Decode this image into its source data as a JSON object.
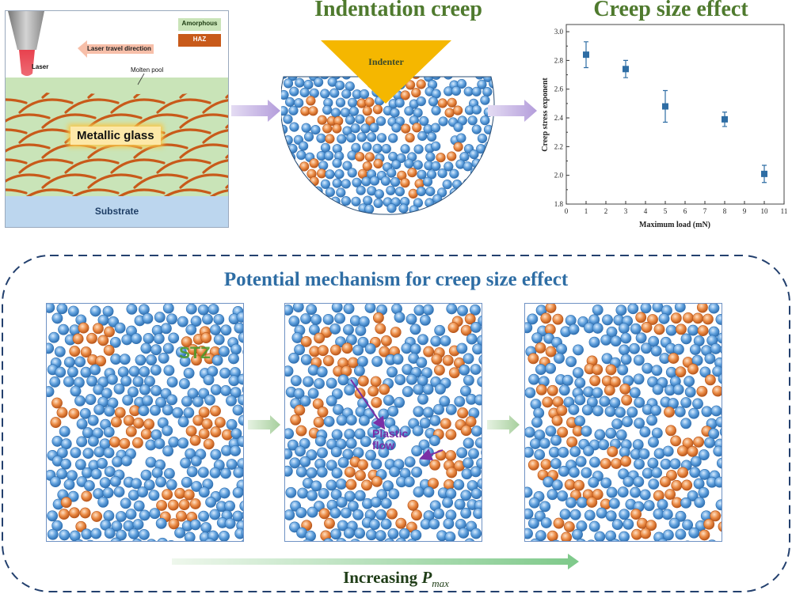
{
  "laser_panel": {
    "laser_label": "Laser",
    "travel_direction_label": "Laser travel direction",
    "molten_pool_label": "Molten pool",
    "legend": [
      {
        "label": "Amorphous",
        "color": "#c9e4b8"
      },
      {
        "label": "HAZ",
        "color": "#c85a1a"
      }
    ],
    "metallic_glass_label": "Metallic glass",
    "substrate_label": "Substrate"
  },
  "indentation_panel": {
    "title": "Indentation creep",
    "indenter_label": "Indenter"
  },
  "chart_data": {
    "type": "scatter",
    "title": "Creep size effect",
    "xlabel": "Maximum load (mN)",
    "ylabel": "Creep stress exponent",
    "xlim": [
      0,
      11
    ],
    "ylim": [
      1.8,
      3.05
    ],
    "xticks": [
      "0",
      "1",
      "2",
      "3",
      "4",
      "5",
      "6",
      "7",
      "8",
      "9",
      "10",
      "11"
    ],
    "yticks": [
      "1.8",
      "2.0",
      "2.2",
      "2.4",
      "2.6",
      "2.8",
      "3.0"
    ],
    "grid": false,
    "series": [
      {
        "name": "Creep stress exponent",
        "x": [
          1,
          3,
          5,
          8,
          10
        ],
        "y": [
          2.84,
          2.74,
          2.48,
          2.39,
          2.01
        ],
        "err_low": [
          0.09,
          0.06,
          0.11,
          0.05,
          0.06
        ],
        "err_high": [
          0.09,
          0.06,
          0.11,
          0.05,
          0.06
        ],
        "color": "#2e6da4"
      }
    ]
  },
  "mechanism": {
    "title": "Potential mechanism for creep size effect",
    "stz_label": "STZ",
    "plastic_flow_label": "Plastic\nflow",
    "increasing_label": "Increasing ",
    "pmax_symbol": "P",
    "pmax_subscript": "max"
  },
  "colors": {
    "atom_blue": "#4a8fd0",
    "atom_orange": "#e07a35",
    "title_green": "#4f7a2e",
    "title_blue": "#2e6da4",
    "dash_border": "#23406e",
    "arrow_purple": "#b9a3dd",
    "arrow_green": "#a8cf9e",
    "plastic_flow": "#7a2fa6"
  }
}
